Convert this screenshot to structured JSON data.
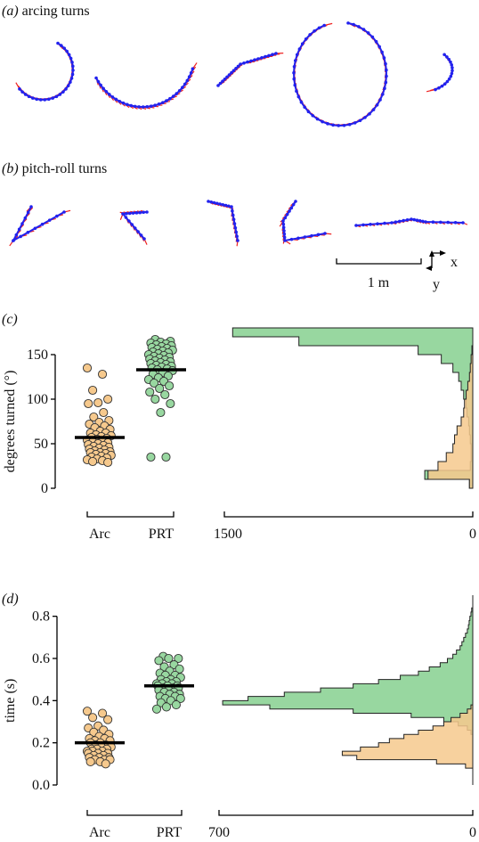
{
  "panel_a": {
    "label": "(a)",
    "title": "arcing turns"
  },
  "panel_b": {
    "label": "(b)",
    "title": "pitch-roll turns"
  },
  "scale": {
    "bar_label": "1 m",
    "x_axis": "x",
    "y_axis": "y"
  },
  "colors": {
    "track": "#2222ee",
    "heading": "#ee2222",
    "arc": "#f6c98d",
    "prt": "#98d7a0",
    "overlap": "#c7b44f",
    "mean": "#000000"
  },
  "chart_data": [
    {
      "panel": "(c)",
      "type": "scatter",
      "ylabel": "degrees turned (°)",
      "ylim": [
        0,
        180
      ],
      "yticks": [
        0,
        50,
        100,
        150
      ],
      "categories": [
        "Arc",
        "PRT"
      ],
      "series": [
        {
          "name": "Arc",
          "mean": 57,
          "values": [
            135,
            128,
            110,
            100,
            96,
            95,
            85,
            80,
            76,
            74,
            72,
            70,
            68,
            66,
            64,
            62,
            62,
            60,
            59,
            58,
            57,
            56,
            55,
            54,
            53,
            52,
            51,
            50,
            49,
            48,
            47,
            46,
            45,
            44,
            43,
            42,
            41,
            40,
            40,
            39,
            38,
            37,
            36,
            35,
            34,
            33,
            32,
            31,
            30,
            29
          ]
        },
        {
          "name": "PRT",
          "mean": 133,
          "values": [
            167,
            165,
            164,
            163,
            162,
            161,
            160,
            159,
            158,
            157,
            156,
            155,
            154,
            153,
            152,
            151,
            150,
            149,
            148,
            147,
            146,
            145,
            144,
            143,
            142,
            141,
            140,
            139,
            138,
            137,
            136,
            135,
            134,
            133,
            132,
            130,
            128,
            126,
            124,
            122,
            120,
            118,
            115,
            112,
            108,
            105,
            100,
            95,
            85,
            35,
            35
          ]
        }
      ],
      "histogram": {
        "xlim": [
          1500,
          0
        ],
        "xticks": [
          1500,
          0
        ],
        "bins": [
          0,
          10,
          20,
          30,
          40,
          50,
          60,
          70,
          80,
          90,
          100,
          110,
          120,
          130,
          140,
          150,
          160,
          170,
          180
        ],
        "arc": [
          20,
          270,
          210,
          160,
          120,
          110,
          95,
          70,
          55,
          50,
          40,
          30,
          20,
          15,
          10,
          5,
          0,
          0
        ],
        "prt": [
          20,
          290,
          15,
          10,
          10,
          15,
          20,
          25,
          35,
          40,
          55,
          70,
          85,
          120,
          190,
          330,
          1050,
          1450
        ]
      }
    },
    {
      "panel": "(d)",
      "type": "scatter",
      "ylabel": "time (s)",
      "ylim": [
        0,
        0.9
      ],
      "yticks": [
        0.0,
        0.2,
        0.4,
        0.6,
        0.8
      ],
      "categories": [
        "Arc",
        "PRT"
      ],
      "series": [
        {
          "name": "Arc",
          "mean": 0.2,
          "values": [
            0.35,
            0.34,
            0.32,
            0.31,
            0.28,
            0.27,
            0.26,
            0.25,
            0.24,
            0.23,
            0.22,
            0.22,
            0.21,
            0.21,
            0.2,
            0.2,
            0.19,
            0.19,
            0.18,
            0.18,
            0.17,
            0.17,
            0.17,
            0.16,
            0.16,
            0.16,
            0.15,
            0.15,
            0.15,
            0.14,
            0.14,
            0.13,
            0.13,
            0.13,
            0.12,
            0.12,
            0.12,
            0.11,
            0.11,
            0.1
          ]
        },
        {
          "name": "PRT",
          "mean": 0.47,
          "values": [
            0.61,
            0.6,
            0.6,
            0.59,
            0.57,
            0.56,
            0.55,
            0.54,
            0.53,
            0.52,
            0.52,
            0.51,
            0.5,
            0.5,
            0.49,
            0.49,
            0.48,
            0.48,
            0.48,
            0.47,
            0.47,
            0.47,
            0.46,
            0.46,
            0.46,
            0.45,
            0.45,
            0.44,
            0.44,
            0.43,
            0.43,
            0.42,
            0.42,
            0.41,
            0.41,
            0.4,
            0.39,
            0.38,
            0.37,
            0.36
          ]
        }
      ],
      "histogram": {
        "xlim": [
          700,
          0
        ],
        "xticks": [
          700,
          0
        ],
        "bin_width": 0.02,
        "bins_start": 0.06,
        "arc": [
          0,
          20,
          100,
          320,
          360,
          310,
          260,
          230,
          190,
          150,
          110,
          80,
          60,
          35,
          15,
          5,
          0,
          0,
          0,
          0,
          0,
          0,
          0,
          0,
          0,
          0,
          0,
          0,
          0,
          0,
          0,
          0,
          0,
          0,
          0,
          0,
          0,
          0,
          0,
          0
        ],
        "prt": [
          0,
          0,
          0,
          0,
          0,
          0,
          0,
          0,
          0,
          5,
          15,
          40,
          80,
          170,
          330,
          560,
          690,
          620,
          520,
          420,
          330,
          260,
          200,
          150,
          120,
          90,
          70,
          55,
          45,
          35,
          30,
          25,
          20,
          15,
          12,
          10,
          8,
          5,
          3,
          0
        ]
      }
    }
  ]
}
